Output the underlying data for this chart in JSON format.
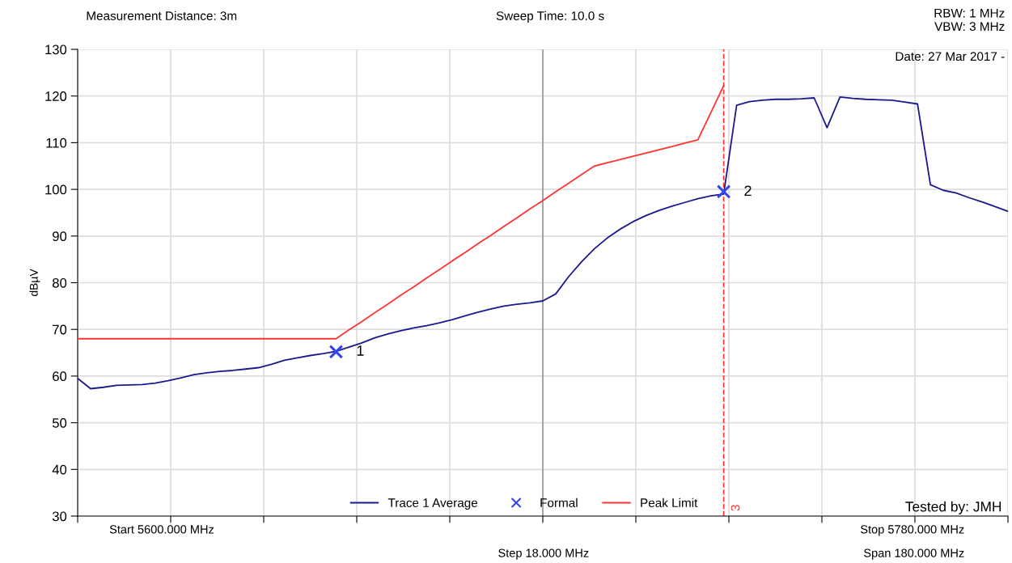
{
  "chart_data": {
    "type": "line",
    "ylabel": "dBµV",
    "categories": [
      null,
      null,
      null,
      null,
      null,
      null,
      null,
      null,
      null,
      null,
      null,
      null,
      null,
      null,
      null,
      null,
      null,
      null,
      null,
      null,
      null,
      null,
      null,
      null,
      null,
      null,
      null,
      null,
      null,
      null,
      null,
      null,
      null,
      null,
      null,
      null,
      null,
      null,
      null,
      null,
      null,
      null,
      null,
      null,
      null,
      null,
      null,
      null,
      null,
      null,
      null,
      null,
      null,
      null,
      null,
      null,
      null,
      null,
      null,
      null,
      null,
      null,
      null,
      null,
      null,
      null,
      null,
      null,
      null,
      null,
      null,
      null,
      null
    ],
    "ylim": [
      30,
      130
    ],
    "yticks": [
      30,
      40,
      50,
      60,
      70,
      80,
      90,
      100,
      110,
      120,
      130
    ],
    "grid": true,
    "legend": "bottom",
    "series": [
      {
        "name": "Trace 1 Average",
        "color": "#1a1a8c",
        "values": [
          59.5,
          57.3,
          57.6,
          58.0,
          58.1,
          58.2,
          58.5,
          59.0,
          59.6,
          60.3,
          60.7,
          61.0,
          61.2,
          61.5,
          61.8,
          62.5,
          63.4,
          63.9,
          64.4,
          64.8,
          65.3,
          66.2,
          67.1,
          68.2,
          69.0,
          69.7,
          70.3,
          70.8,
          71.4,
          72.1,
          72.9,
          73.7,
          74.4,
          75.0,
          75.4,
          75.7,
          76.1,
          77.6,
          81.3,
          84.5,
          87.3,
          89.6,
          91.5,
          93.1,
          94.4,
          95.5,
          96.4,
          97.2,
          98.0,
          98.6,
          99.0,
          118.0,
          118.8,
          119.1,
          119.3,
          119.3,
          119.4,
          119.6,
          113.2,
          119.8,
          119.5,
          119.3,
          119.2,
          119.1,
          118.7,
          118.3,
          101.0,
          99.8,
          99.2,
          98.2,
          97.3,
          96.3,
          95.3
        ]
      },
      {
        "name": "Formal",
        "type": "scatter",
        "marker": "cross",
        "color": "#3344ee",
        "values": [
          null,
          null,
          null,
          null,
          null,
          null,
          null,
          null,
          null,
          null,
          null,
          null,
          null,
          null,
          null,
          null,
          null,
          null,
          null,
          null,
          65.2,
          null,
          null,
          null,
          null,
          null,
          null,
          null,
          null,
          null,
          null,
          null,
          null,
          null,
          null,
          null,
          null,
          null,
          null,
          null,
          null,
          null,
          null,
          null,
          null,
          null,
          null,
          null,
          null,
          null,
          99.5,
          null,
          null,
          null,
          null,
          null,
          null,
          null,
          null,
          null,
          null,
          null,
          null,
          null,
          null,
          null,
          null,
          null,
          null,
          null,
          null,
          null,
          null
        ]
      },
      {
        "name": "Peak Limit",
        "color": "#ff3333",
        "values": [
          68.0,
          68.0,
          68.0,
          68.0,
          68.0,
          68.0,
          68.0,
          68.0,
          68.0,
          68.0,
          68.0,
          68.0,
          68.0,
          68.0,
          68.0,
          68.0,
          68.0,
          68.0,
          68.0,
          68.0,
          68.0,
          69.9,
          71.7,
          73.6,
          75.4,
          77.3,
          79.1,
          81.0,
          82.8,
          84.7,
          86.5,
          88.4,
          90.2,
          92.1,
          93.9,
          95.8,
          97.6,
          99.5,
          101.3,
          103.2,
          105.0,
          105.7,
          106.4,
          107.1,
          107.8,
          108.5,
          109.2,
          109.9,
          110.6,
          116.4,
          122.2,
          null,
          null,
          null,
          null,
          null,
          null,
          null,
          null,
          null,
          null,
          null,
          null,
          null,
          null,
          null,
          null,
          null,
          null,
          null,
          null,
          null,
          null
        ]
      }
    ],
    "annotations": [
      "Measurement Distance: 3m",
      "Sweep Time: 10.0 s",
      "RBW: 1 MHz\nVBW: 3 MHz",
      "Date: 27 Mar 2017 -",
      "Tested by: JMH",
      "Start 5600.000 MHz",
      "Stop 5780.000 MHz",
      "Step 18.000 MHz",
      "Span 180.000 MHz",
      "1",
      "2",
      "3"
    ]
  }
}
